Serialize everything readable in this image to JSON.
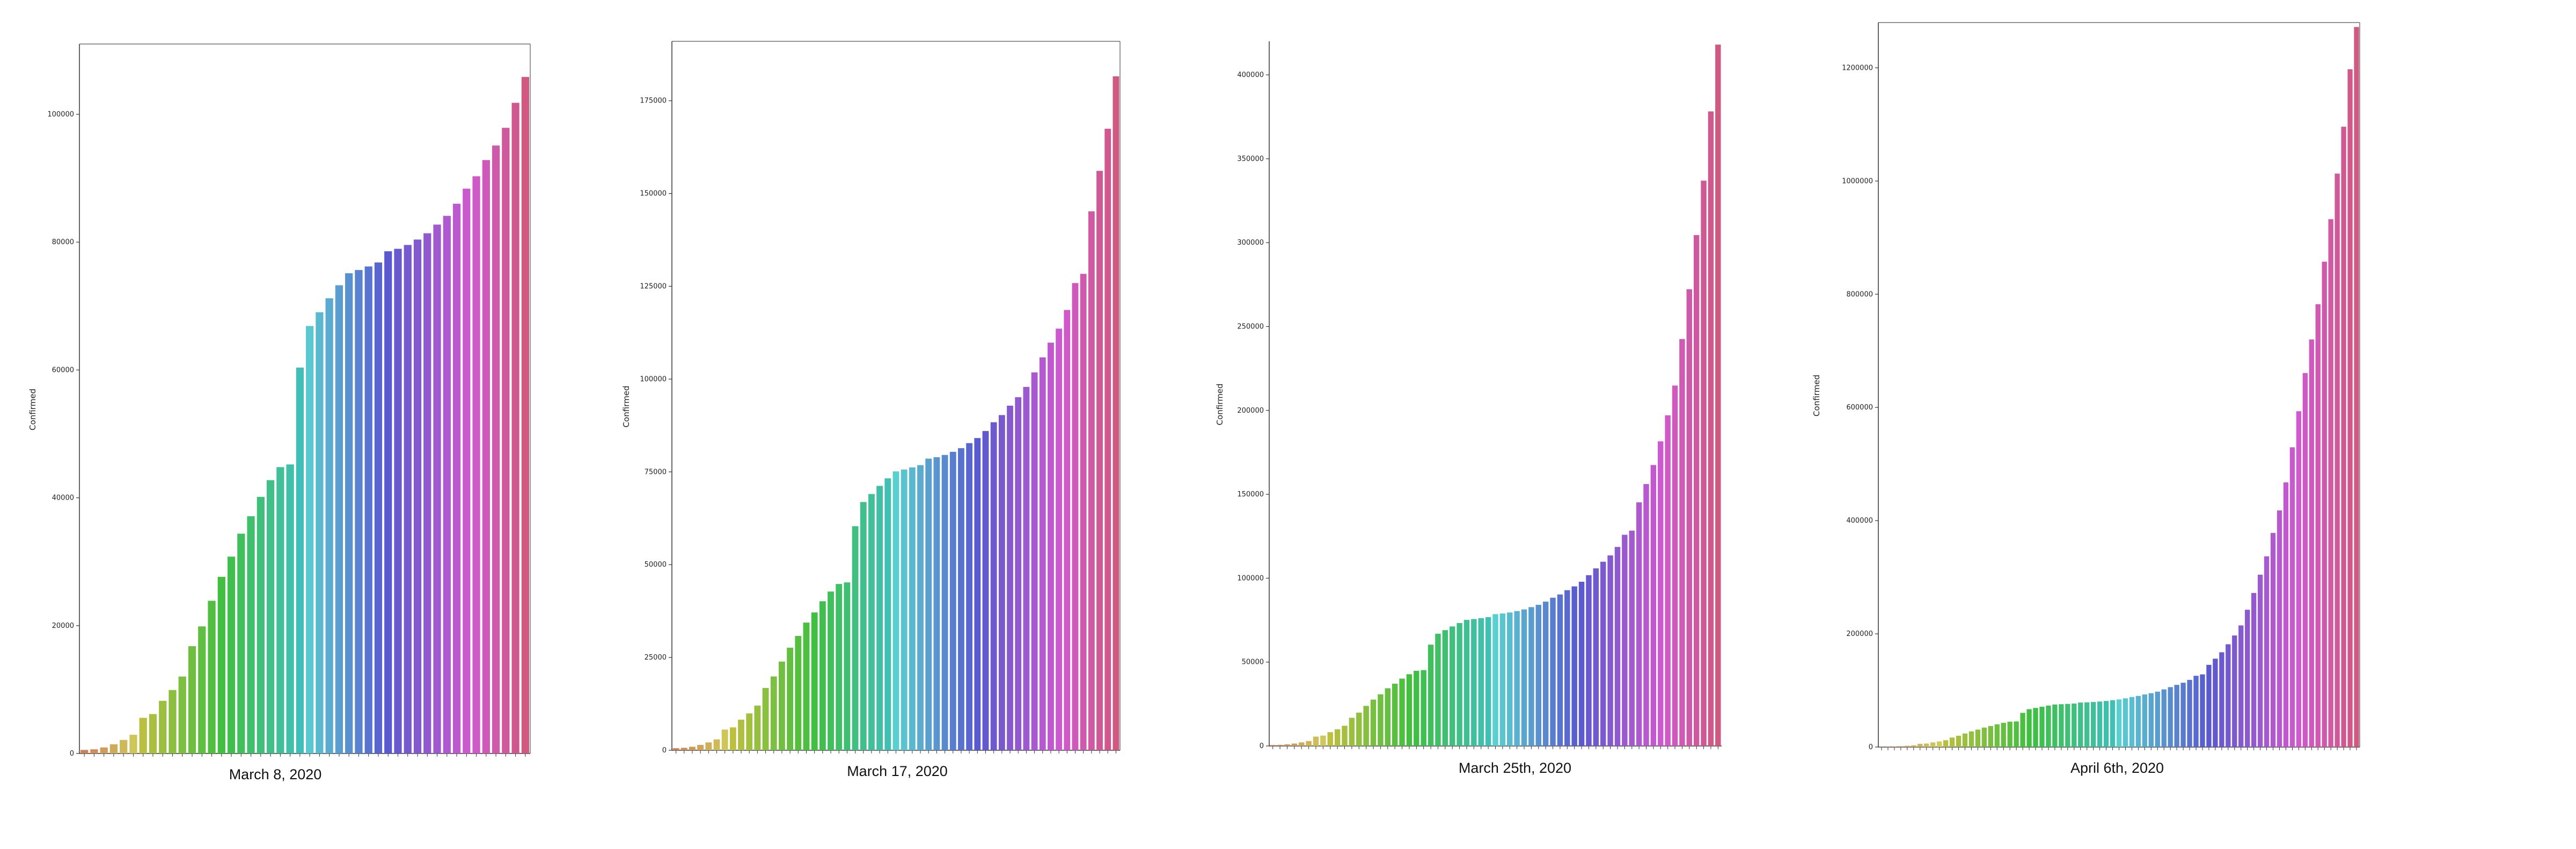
{
  "chart_data": [
    {
      "type": "bar",
      "caption": "March 8, 2020",
      "ylabel": "Confirmed",
      "ylim": [
        0,
        111000
      ],
      "yticks": [
        0,
        20000,
        40000,
        60000,
        80000,
        100000
      ],
      "ytick_labels": [
        "0",
        "20000",
        "40000",
        "60000",
        "80000",
        "100000"
      ],
      "values": [
        555,
        654,
        941,
        1434,
        2118,
        2927,
        5578,
        6166,
        8234,
        9927,
        12038,
        16787,
        19881,
        23892,
        27635,
        30794,
        34391,
        37120,
        40150,
        42762,
        44802,
        45221,
        60368,
        66885,
        69030,
        71224,
        73258,
        75136,
        75639,
        76197,
        76819,
        78572,
        78958,
        79561,
        80406,
        81388,
        82746,
        84112,
        86011,
        88369,
        90306,
        92840,
        95120,
        97886,
        101801,
        105847
      ],
      "colors_note": "husl palette",
      "grid": false
    },
    {
      "type": "bar",
      "caption": "March 17, 2020",
      "ylabel": "Confirmed",
      "ylim": [
        0,
        191000
      ],
      "yticks": [
        0,
        25000,
        50000,
        75000,
        100000,
        125000,
        150000,
        175000
      ],
      "ytick_labels": [
        "0",
        "25000",
        "50000",
        "75000",
        "100000",
        "125000",
        "150000",
        "175000"
      ],
      "values": [
        555,
        654,
        941,
        1434,
        2118,
        2927,
        5578,
        6166,
        8234,
        9927,
        12038,
        16787,
        19881,
        23892,
        27635,
        30794,
        34391,
        37120,
        40150,
        42762,
        44802,
        45221,
        60368,
        66885,
        69030,
        71224,
        73258,
        75136,
        75639,
        76197,
        76819,
        78572,
        78958,
        79561,
        80406,
        81388,
        82746,
        84112,
        86011,
        88369,
        90306,
        92840,
        95120,
        97886,
        101801,
        105847,
        109821,
        113590,
        118620,
        125875,
        128352,
        145205,
        156101,
        167454,
        181574
      ],
      "grid": false
    },
    {
      "type": "bar",
      "caption": "March 25th, 2020",
      "ylabel": "Confirmed",
      "ylim": [
        0,
        420000
      ],
      "yticks": [
        0,
        50000,
        100000,
        150000,
        200000,
        250000,
        300000,
        350000,
        400000
      ],
      "ytick_labels": [
        "0",
        "50000",
        "100000",
        "150000",
        "200000",
        "250000",
        "300000",
        "350000",
        "400000"
      ],
      "values": [
        555,
        654,
        941,
        1434,
        2118,
        2927,
        5578,
        6166,
        8234,
        9927,
        12038,
        16787,
        19881,
        23892,
        27635,
        30794,
        34391,
        37120,
        40150,
        42762,
        44802,
        45221,
        60368,
        66885,
        69030,
        71224,
        73258,
        75136,
        75639,
        76197,
        76819,
        78572,
        78958,
        79561,
        80406,
        81388,
        82746,
        84112,
        86011,
        88369,
        90306,
        92840,
        95120,
        97886,
        101801,
        105847,
        109821,
        113590,
        118620,
        125875,
        128352,
        145205,
        156101,
        167454,
        181574,
        197102,
        214821,
        242570,
        272208,
        304507,
        336953,
        378235,
        418045
      ],
      "grid": false
    },
    {
      "type": "bar",
      "caption": "April 6th, 2020",
      "ylabel": "Confirmed",
      "ylim": [
        0,
        1280000
      ],
      "yticks": [
        0,
        200000,
        400000,
        600000,
        800000,
        1000000,
        1200000
      ],
      "ytick_labels": [
        "0",
        "200000",
        "400000",
        "600000",
        "800000",
        "1000000",
        "1200000"
      ],
      "values": [
        555,
        654,
        941,
        1434,
        2118,
        2927,
        5578,
        6166,
        8234,
        9927,
        12038,
        16787,
        19881,
        23892,
        27635,
        30794,
        34391,
        37120,
        40150,
        42762,
        44802,
        45221,
        60368,
        66885,
        69030,
        71224,
        73258,
        75136,
        75639,
        76197,
        76819,
        78572,
        78958,
        79561,
        80406,
        81388,
        82746,
        84112,
        86011,
        88369,
        90306,
        92840,
        95120,
        97886,
        101801,
        105847,
        109821,
        113590,
        118620,
        125875,
        128352,
        145205,
        156101,
        167454,
        181574,
        197102,
        214821,
        242570,
        272208,
        304507,
        336953,
        378235,
        418045,
        467653,
        529591,
        593291,
        660706,
        720117,
        782365,
        857487,
        932605,
        1013157,
        1095917,
        1197405,
        1272115
      ],
      "grid": false
    }
  ]
}
